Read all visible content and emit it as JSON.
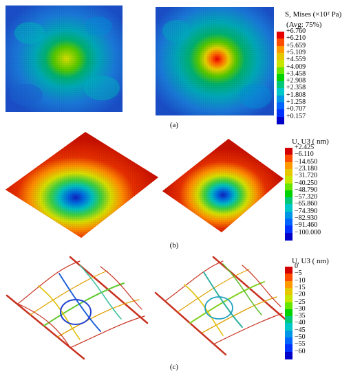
{
  "panels": [
    {
      "label": "(a)",
      "legend": {
        "title_line1": "S, Mises (×10² Pa)",
        "title_line2": "(Avg: 75%)",
        "values": [
          "+6.760",
          "+6.210",
          "+5.659",
          "+5.109",
          "+4.559",
          "+4.009",
          "+3.458",
          "+2.908",
          "+2.358",
          "+1.808",
          "+1.258",
          "+0.707",
          "+0.157"
        ],
        "colors": [
          "#e60000",
          "#ff4d00",
          "#ff9900",
          "#e6c800",
          "#c8e600",
          "#66e600",
          "#00d200",
          "#00c878",
          "#00c8c8",
          "#0096e6",
          "#0064ff",
          "#0032ff",
          "#0000c8"
        ]
      }
    },
    {
      "label": "(b)",
      "legend": {
        "title_line1": "U, U3 ( nm)",
        "title_line2": "",
        "values": [
          "+2.425",
          "−6.110",
          "−14.650",
          "−23.180",
          "−31.720",
          "−40.250",
          "−48.790",
          "−57.320",
          "−65.860",
          "−74.390",
          "−82.930",
          "−91.460",
          "−100.000"
        ],
        "colors": [
          "#d20000",
          "#ff4d00",
          "#ff9900",
          "#e6c800",
          "#c8e600",
          "#66e600",
          "#00d200",
          "#00c878",
          "#00c8c8",
          "#0096e6",
          "#0064ff",
          "#0032ff",
          "#0000c8"
        ]
      }
    },
    {
      "label": "(c)",
      "legend": {
        "title_line1": "U, U3 ( nm)",
        "title_line2": "",
        "values": [
          "0",
          "−5",
          "−10",
          "−15",
          "−20",
          "−25",
          "−30",
          "−35",
          "−40",
          "−45",
          "−50",
          "−55",
          "−60"
        ],
        "colors": [
          "#d20000",
          "#ff4d00",
          "#ff9900",
          "#e6c800",
          "#c8e600",
          "#66e600",
          "#00d200",
          "#00c878",
          "#00c8c8",
          "#0096e6",
          "#0064ff",
          "#0032ff",
          "#0000c8"
        ]
      }
    }
  ]
}
